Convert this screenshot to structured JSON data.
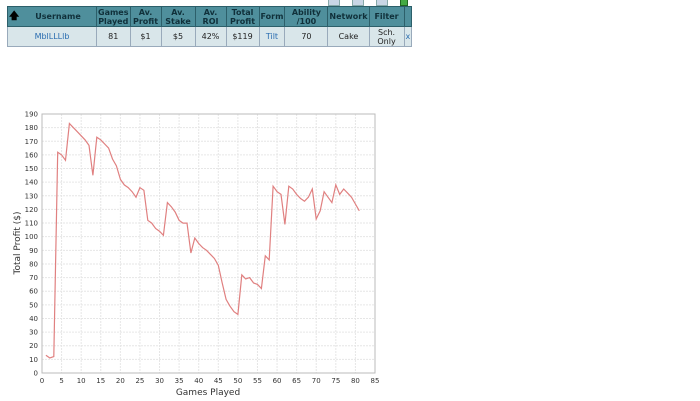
{
  "table": {
    "headers": [
      "Username",
      "Games Played",
      "Av. Profit",
      "Av. Stake",
      "Av. ROI",
      "Total Profit",
      "Form",
      "Ability /100",
      "Network",
      "Filter"
    ],
    "row": {
      "username": "MblLLLlb",
      "games": "81",
      "av_profit": "$1",
      "av_stake": "$5",
      "roi": "42%",
      "total_profit": "$119",
      "form": "Tilt",
      "ability": "70",
      "network": "Cake",
      "filter": "Sch. Only",
      "remove": "x"
    },
    "sort_icon": "arrow-up-icon"
  },
  "chart_data": {
    "type": "line",
    "title": "",
    "xlabel": "Games Played",
    "ylabel": "Total Profit ($)",
    "xlim": [
      0,
      85
    ],
    "ylim": [
      0,
      190
    ],
    "grid": true,
    "line_color": "#e08080",
    "xticks": [
      0,
      5,
      10,
      15,
      20,
      25,
      30,
      35,
      40,
      45,
      50,
      55,
      60,
      65,
      70,
      75,
      80,
      85
    ],
    "yticks": [
      0,
      10,
      20,
      30,
      40,
      50,
      60,
      70,
      80,
      90,
      100,
      110,
      120,
      130,
      140,
      150,
      160,
      170,
      180,
      190
    ],
    "x": [
      1,
      2,
      3,
      4,
      5,
      6,
      7,
      8,
      9,
      10,
      11,
      12,
      13,
      14,
      15,
      16,
      17,
      18,
      19,
      20,
      21,
      22,
      23,
      24,
      25,
      26,
      27,
      28,
      29,
      30,
      31,
      32,
      33,
      34,
      35,
      36,
      37,
      38,
      39,
      40,
      41,
      42,
      43,
      44,
      45,
      46,
      47,
      48,
      49,
      50,
      51,
      52,
      53,
      54,
      55,
      56,
      57,
      58,
      59,
      60,
      61,
      62,
      63,
      64,
      65,
      66,
      67,
      68,
      69,
      70,
      71,
      72,
      73,
      74,
      75,
      76,
      77,
      78,
      79,
      80,
      81
    ],
    "y": [
      13,
      11,
      12,
      162,
      160,
      156,
      183,
      180,
      177,
      174,
      171,
      167,
      145,
      173,
      171,
      168,
      165,
      157,
      152,
      142,
      138,
      136,
      133,
      129,
      136,
      134,
      112,
      110,
      106,
      104,
      101,
      125,
      122,
      118,
      112,
      110,
      110,
      88,
      99,
      95,
      92,
      90,
      87,
      84,
      79,
      66,
      54,
      49,
      45,
      43,
      72,
      69,
      70,
      66,
      65,
      62,
      86,
      83,
      137,
      133,
      131,
      109,
      137,
      135,
      131,
      128,
      126,
      129,
      135,
      113,
      119,
      133,
      129,
      125,
      138,
      131,
      135,
      132,
      129,
      124,
      119
    ]
  }
}
